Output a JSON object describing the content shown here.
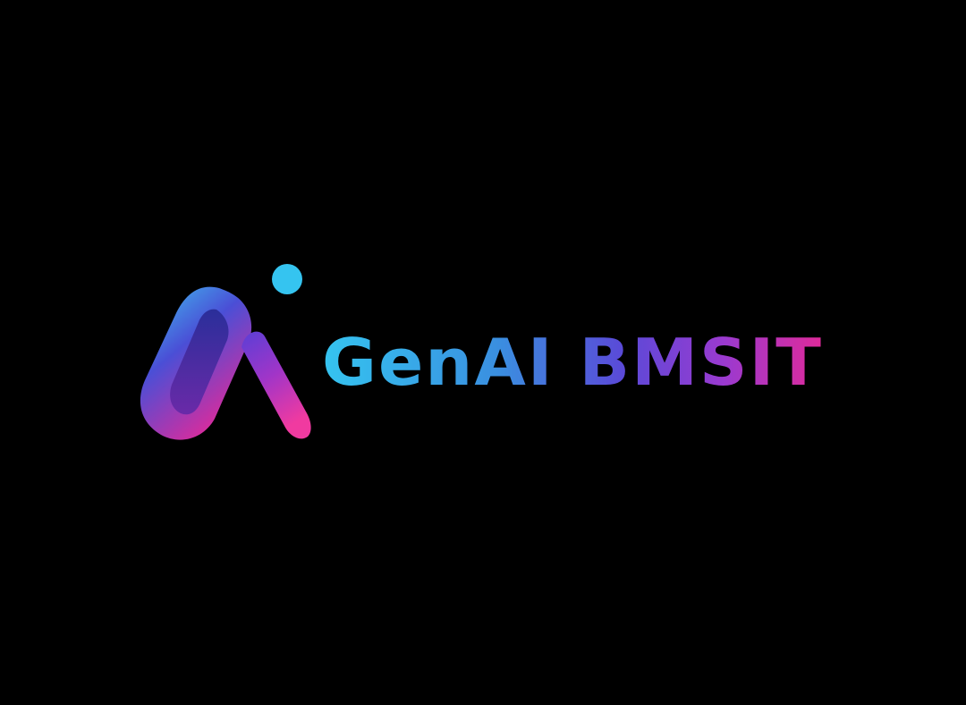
{
  "brand": {
    "name": "GenAI BMSIT",
    "colors": {
      "background": "#000000",
      "cyan": "#35c4f0",
      "blue": "#3a6fd8",
      "purple": "#7a3bd0",
      "magenta": "#e02a9a"
    }
  },
  "logo_mark": {
    "icon": "genai-swoosh-logo-icon"
  }
}
